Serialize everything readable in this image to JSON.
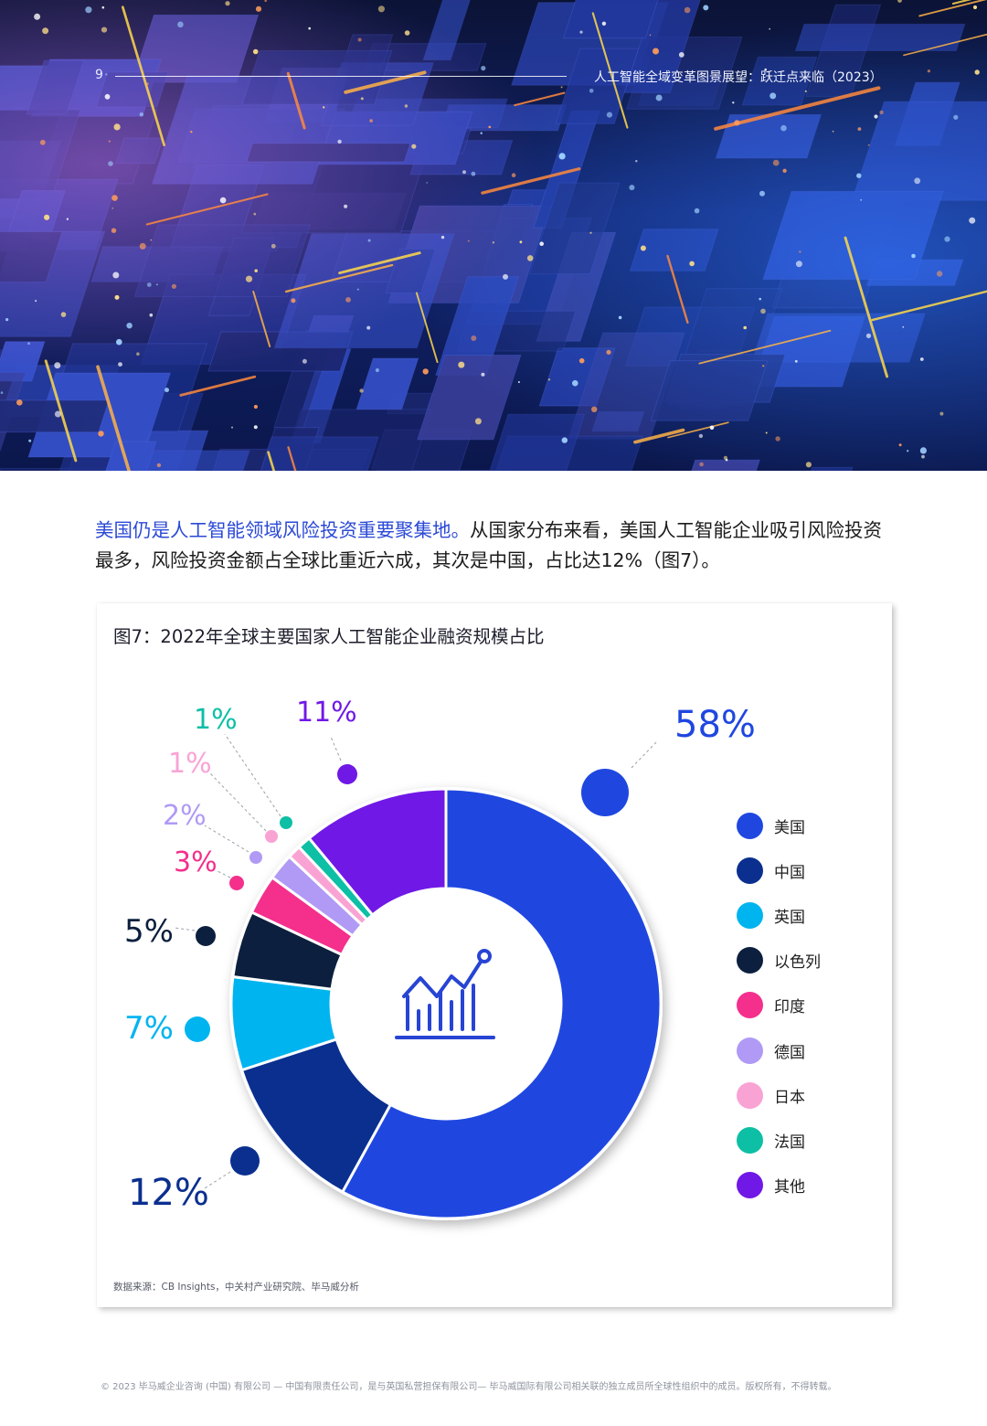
{
  "header": {
    "page_number": "9",
    "report_title": "人工智能全域变革图景展望：跃迁点来临（2023）"
  },
  "intro": {
    "lead": "美国仍是人工智能领域风险投资重要聚集地。",
    "body": "从国家分布来看，美国人工智能企业吸引风险投资最多，风险投资金额占全球比重近六成，其次是中国，占比达12%（图7）。"
  },
  "figure": {
    "title": "图7：2022年全球主要国家人工智能企业融资规模占比",
    "source": "数据来源：CB Insights，中关村产业研究院、毕马威分析",
    "center_icon": "chart-growth-icon"
  },
  "chart_data": {
    "type": "pie",
    "donut": true,
    "legend_position": "right",
    "slices": [
      {
        "name": "美国",
        "value": 58,
        "label": "58%",
        "color": "#1f47e0"
      },
      {
        "name": "中国",
        "value": 12,
        "label": "12%",
        "color": "#0a2f8f"
      },
      {
        "name": "英国",
        "value": 7,
        "label": "7%",
        "color": "#00b4f0"
      },
      {
        "name": "以色列",
        "value": 5,
        "label": "5%",
        "color": "#0c1f3e"
      },
      {
        "name": "印度",
        "value": 3,
        "label": "3%",
        "color": "#f42f8c"
      },
      {
        "name": "德国",
        "value": 2,
        "label": "2%",
        "color": "#b09af5"
      },
      {
        "name": "日本",
        "value": 1,
        "label": "1%",
        "color": "#f9a3d4"
      },
      {
        "name": "法国",
        "value": 1,
        "label": "1%",
        "color": "#0dbfa5"
      },
      {
        "name": "其他",
        "value": 11,
        "label": "11%",
        "color": "#7018e6"
      }
    ]
  },
  "footer": {
    "text": "© 2023 毕马威企业咨询 (中国) 有限公司 — 中国有限责任公司，是与英国私营担保有限公司— 毕马威国际有限公司相关联的独立成员所全球性组织中的成员。版权所有，不得转载。"
  }
}
